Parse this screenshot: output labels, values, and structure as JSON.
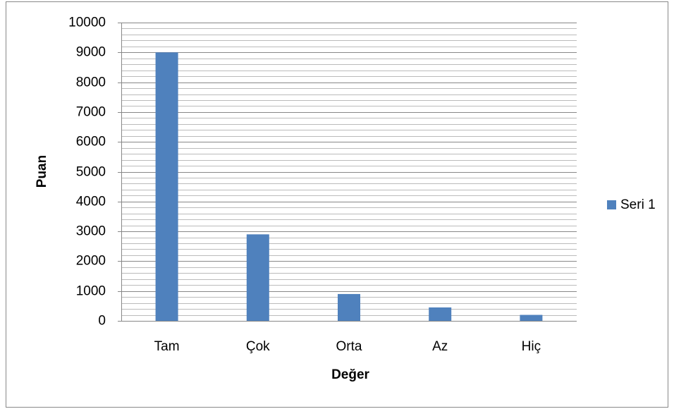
{
  "chart_data": {
    "type": "bar",
    "categories": [
      "Tam",
      "Çok",
      "Orta",
      "Az",
      "Hiç"
    ],
    "series": [
      {
        "name": "Seri 1",
        "color": "#4f81bd",
        "values": [
          9000,
          2900,
          900,
          450,
          200
        ]
      }
    ],
    "x_label": "Değer",
    "y_label": "Puan",
    "ylim": [
      0,
      10000
    ],
    "yticks": [
      0,
      1000,
      2000,
      3000,
      4000,
      5000,
      6000,
      7000,
      8000,
      9000,
      10000
    ],
    "minor_yticks": [
      200,
      400,
      600,
      800,
      1200,
      1400,
      1600,
      1800,
      2200,
      2400,
      2600,
      2800,
      3200,
      3400,
      3600,
      3800,
      4200,
      4400,
      4600,
      4800,
      5200,
      5400,
      5600,
      5800,
      6200,
      6400,
      6600,
      6800,
      7200,
      7400,
      7600,
      7800,
      8200,
      8400,
      8600,
      8800,
      9200,
      9400,
      9600,
      9800
    ],
    "grid": true,
    "legend": "right"
  }
}
